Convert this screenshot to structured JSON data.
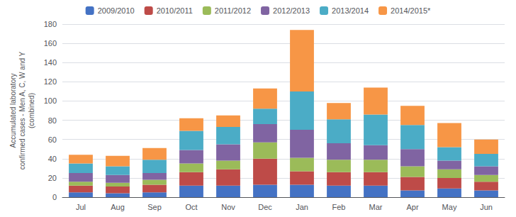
{
  "chart_data": {
    "type": "bar",
    "stacked": true,
    "categories": [
      "Jul",
      "Aug",
      "Sep",
      "Oct",
      "Nov",
      "Dec",
      "Jan",
      "Feb",
      "Mar",
      "Apr",
      "May",
      "Jun"
    ],
    "series": [
      {
        "name": "2009/2010",
        "color": "#4472C4",
        "values": [
          5,
          4,
          5,
          12,
          12,
          13,
          13,
          12,
          12,
          7,
          9,
          7
        ]
      },
      {
        "name": "2010/2011",
        "color": "#BE4B48",
        "values": [
          7,
          7,
          8,
          14,
          17,
          27,
          14,
          14,
          14,
          14,
          11,
          9
        ]
      },
      {
        "name": "2011/2012",
        "color": "#9BBB59",
        "values": [
          4,
          4,
          5,
          9,
          9,
          17,
          14,
          13,
          13,
          11,
          9,
          7
        ]
      },
      {
        "name": "2012/2013",
        "color": "#8064A2",
        "values": [
          9,
          8,
          7,
          14,
          17,
          19,
          29,
          17,
          15,
          18,
          9,
          9
        ]
      },
      {
        "name": "2013/2014",
        "color": "#4BACC6",
        "values": [
          10,
          9,
          14,
          20,
          18,
          16,
          40,
          25,
          32,
          25,
          14,
          13
        ]
      },
      {
        "name": "2014/2015*",
        "color": "#F79646",
        "values": [
          9,
          11,
          12,
          13,
          12,
          21,
          64,
          17,
          28,
          20,
          25,
          15
        ]
      }
    ],
    "ylabel": "Accumulated laboratory\nconfirmed cases - Men A, C, W and Y\n(combined)",
    "ylim": [
      0,
      180
    ],
    "yticks": [
      0,
      20,
      40,
      60,
      80,
      100,
      120,
      140,
      160,
      180
    ],
    "grid": true,
    "legend": "top"
  }
}
